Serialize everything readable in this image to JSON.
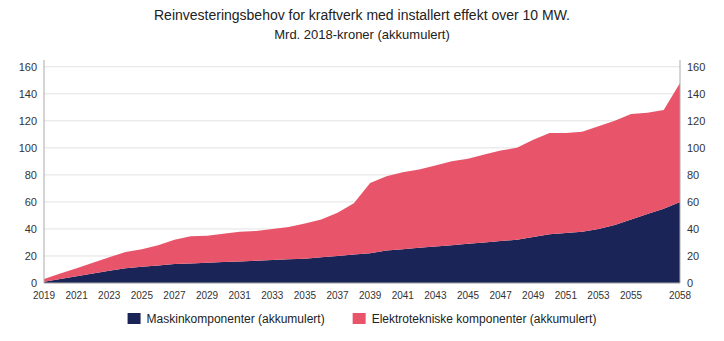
{
  "chart_data": {
    "type": "area",
    "stacked": true,
    "title": "Reinvesteringsbehov for kraftverk med installert effekt over 10 MW.",
    "subtitle": "Mrd. 2018-kroner (akkumulert)",
    "x": [
      2019,
      2020,
      2021,
      2022,
      2023,
      2024,
      2025,
      2026,
      2027,
      2028,
      2029,
      2030,
      2031,
      2032,
      2033,
      2034,
      2035,
      2036,
      2037,
      2038,
      2039,
      2040,
      2041,
      2042,
      2043,
      2044,
      2045,
      2046,
      2047,
      2048,
      2049,
      2050,
      2051,
      2052,
      2053,
      2054,
      2055,
      2056,
      2057,
      2058
    ],
    "series": [
      {
        "name": "Maskinkomponenter (akkumulert)",
        "color": "#1a2456",
        "values": [
          1,
          3,
          5,
          7,
          9,
          11,
          12,
          13,
          14,
          14.5,
          15,
          15.5,
          16,
          16.5,
          17,
          17.5,
          18,
          19,
          20,
          21,
          22,
          24,
          25,
          26,
          27,
          28,
          29,
          30,
          31,
          32,
          34,
          36,
          37,
          38,
          40,
          43,
          47,
          51,
          55,
          60
        ]
      },
      {
        "name": "Elektrotekniske komponenter (akkumulert)",
        "color": "#e8556a",
        "values": [
          2,
          4,
          6,
          8,
          10,
          12,
          13,
          15,
          18,
          20,
          20,
          21,
          22,
          22,
          23,
          24,
          26,
          28,
          32,
          38,
          52,
          55,
          57,
          58,
          60,
          62,
          63,
          65,
          67,
          68,
          72,
          75,
          74,
          74,
          76,
          77,
          78,
          75,
          73,
          88
        ]
      }
    ],
    "xlim": [
      2019,
      2058
    ],
    "xticks": [
      2019,
      2021,
      2023,
      2025,
      2027,
      2029,
      2031,
      2033,
      2035,
      2037,
      2039,
      2041,
      2043,
      2045,
      2047,
      2049,
      2051,
      2053,
      2055,
      2058
    ],
    "ylim": [
      0,
      165
    ],
    "yticks": [
      0,
      20,
      40,
      60,
      80,
      100,
      120,
      140,
      160
    ],
    "y2lim": [
      0,
      165
    ],
    "y2ticks": [
      0,
      20,
      40,
      60,
      80,
      100,
      120,
      140,
      160
    ],
    "grid": true,
    "legend": "bottom"
  }
}
